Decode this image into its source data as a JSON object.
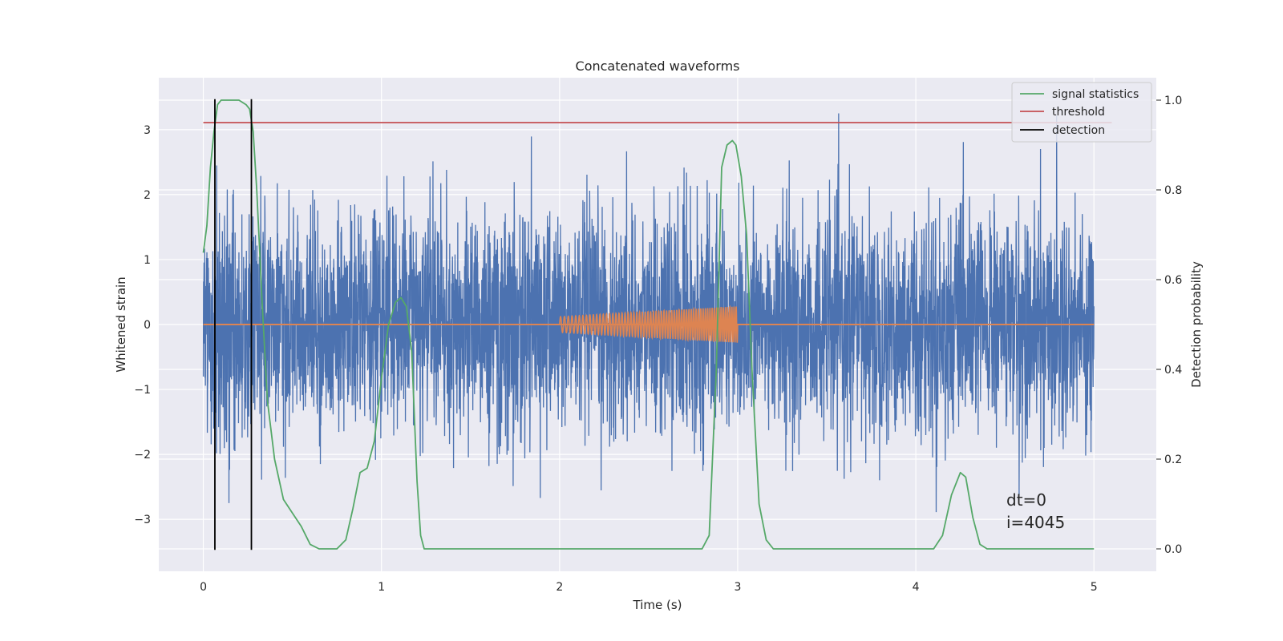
{
  "chart_data": {
    "type": "line",
    "title": "Concatenated waveforms",
    "xlabel": "Time (s)",
    "ylabel": "Whitened strain",
    "ylabel_right": "Detection probability",
    "xlim": [
      -0.25,
      5.35
    ],
    "ylim": [
      -3.8,
      3.8
    ],
    "ylim_right": [
      -0.05,
      1.05
    ],
    "x_ticks": [
      0,
      1,
      2,
      3,
      4,
      5
    ],
    "y_ticks": [
      -3,
      -2,
      -1,
      0,
      1,
      2,
      3
    ],
    "y_ticks_right": [
      0.0,
      0.2,
      0.4,
      0.6,
      0.8,
      1.0
    ],
    "x_tick_labels": [
      "0",
      "1",
      "2",
      "3",
      "4",
      "5"
    ],
    "y_tick_labels": [
      "−3",
      "−2",
      "−1",
      "0",
      "1",
      "2",
      "3"
    ],
    "y_tick_labels_right": [
      "0.0",
      "0.2",
      "0.4",
      "0.6",
      "0.8",
      "1.0"
    ],
    "grid": true,
    "legend_position": "top-right",
    "colors": {
      "background": "#eaeaf2",
      "noise": "#4c72b0",
      "injection": "#dd8452",
      "signal_statistics": "#55a868",
      "threshold": "#c44e52",
      "detection": "#000000"
    },
    "series": [
      {
        "name": "signal statistics",
        "axis": "right",
        "x": [
          0.0,
          0.02,
          0.04,
          0.06,
          0.08,
          0.1,
          0.12,
          0.15,
          0.2,
          0.24,
          0.26,
          0.28,
          0.3,
          0.33,
          0.36,
          0.4,
          0.45,
          0.5,
          0.55,
          0.6,
          0.65,
          0.7,
          0.75,
          0.8,
          0.84,
          0.88,
          0.92,
          0.96,
          1.0,
          1.04,
          1.08,
          1.11,
          1.14,
          1.17,
          1.2,
          1.22,
          1.24,
          1.27,
          1.35,
          1.5,
          2.0,
          2.5,
          2.7,
          2.75,
          2.8,
          2.84,
          2.88,
          2.91,
          2.94,
          2.97,
          2.99,
          3.02,
          3.05,
          3.08,
          3.12,
          3.16,
          3.2,
          3.24,
          3.3,
          3.5,
          4.0,
          4.1,
          4.15,
          4.2,
          4.25,
          4.28,
          4.32,
          4.36,
          4.4,
          4.5,
          5.0
        ],
        "y": [
          0.66,
          0.72,
          0.85,
          0.93,
          0.99,
          1.0,
          1.0,
          1.0,
          1.0,
          0.99,
          0.98,
          0.93,
          0.8,
          0.55,
          0.33,
          0.2,
          0.11,
          0.08,
          0.05,
          0.01,
          0.0,
          0.0,
          0.0,
          0.02,
          0.09,
          0.17,
          0.18,
          0.24,
          0.38,
          0.5,
          0.55,
          0.56,
          0.54,
          0.44,
          0.15,
          0.03,
          0.0,
          0.0,
          0.0,
          0.0,
          0.0,
          0.0,
          0.0,
          0.0,
          0.0,
          0.03,
          0.4,
          0.85,
          0.9,
          0.91,
          0.9,
          0.83,
          0.7,
          0.4,
          0.1,
          0.02,
          0.0,
          0.0,
          0.0,
          0.0,
          0.0,
          0.0,
          0.03,
          0.12,
          0.17,
          0.16,
          0.07,
          0.01,
          0.0,
          0.0,
          0.0
        ]
      },
      {
        "name": "threshold",
        "axis": "right",
        "x": [
          0.0,
          5.1
        ],
        "y": [
          0.95,
          0.95
        ]
      },
      {
        "name": "detection",
        "axis": "left",
        "x": [
          0.065,
          0.27
        ],
        "y": [
          -3.47,
          3.47
        ]
      }
    ],
    "annotations": [
      "dt=0",
      "i=4045"
    ]
  }
}
